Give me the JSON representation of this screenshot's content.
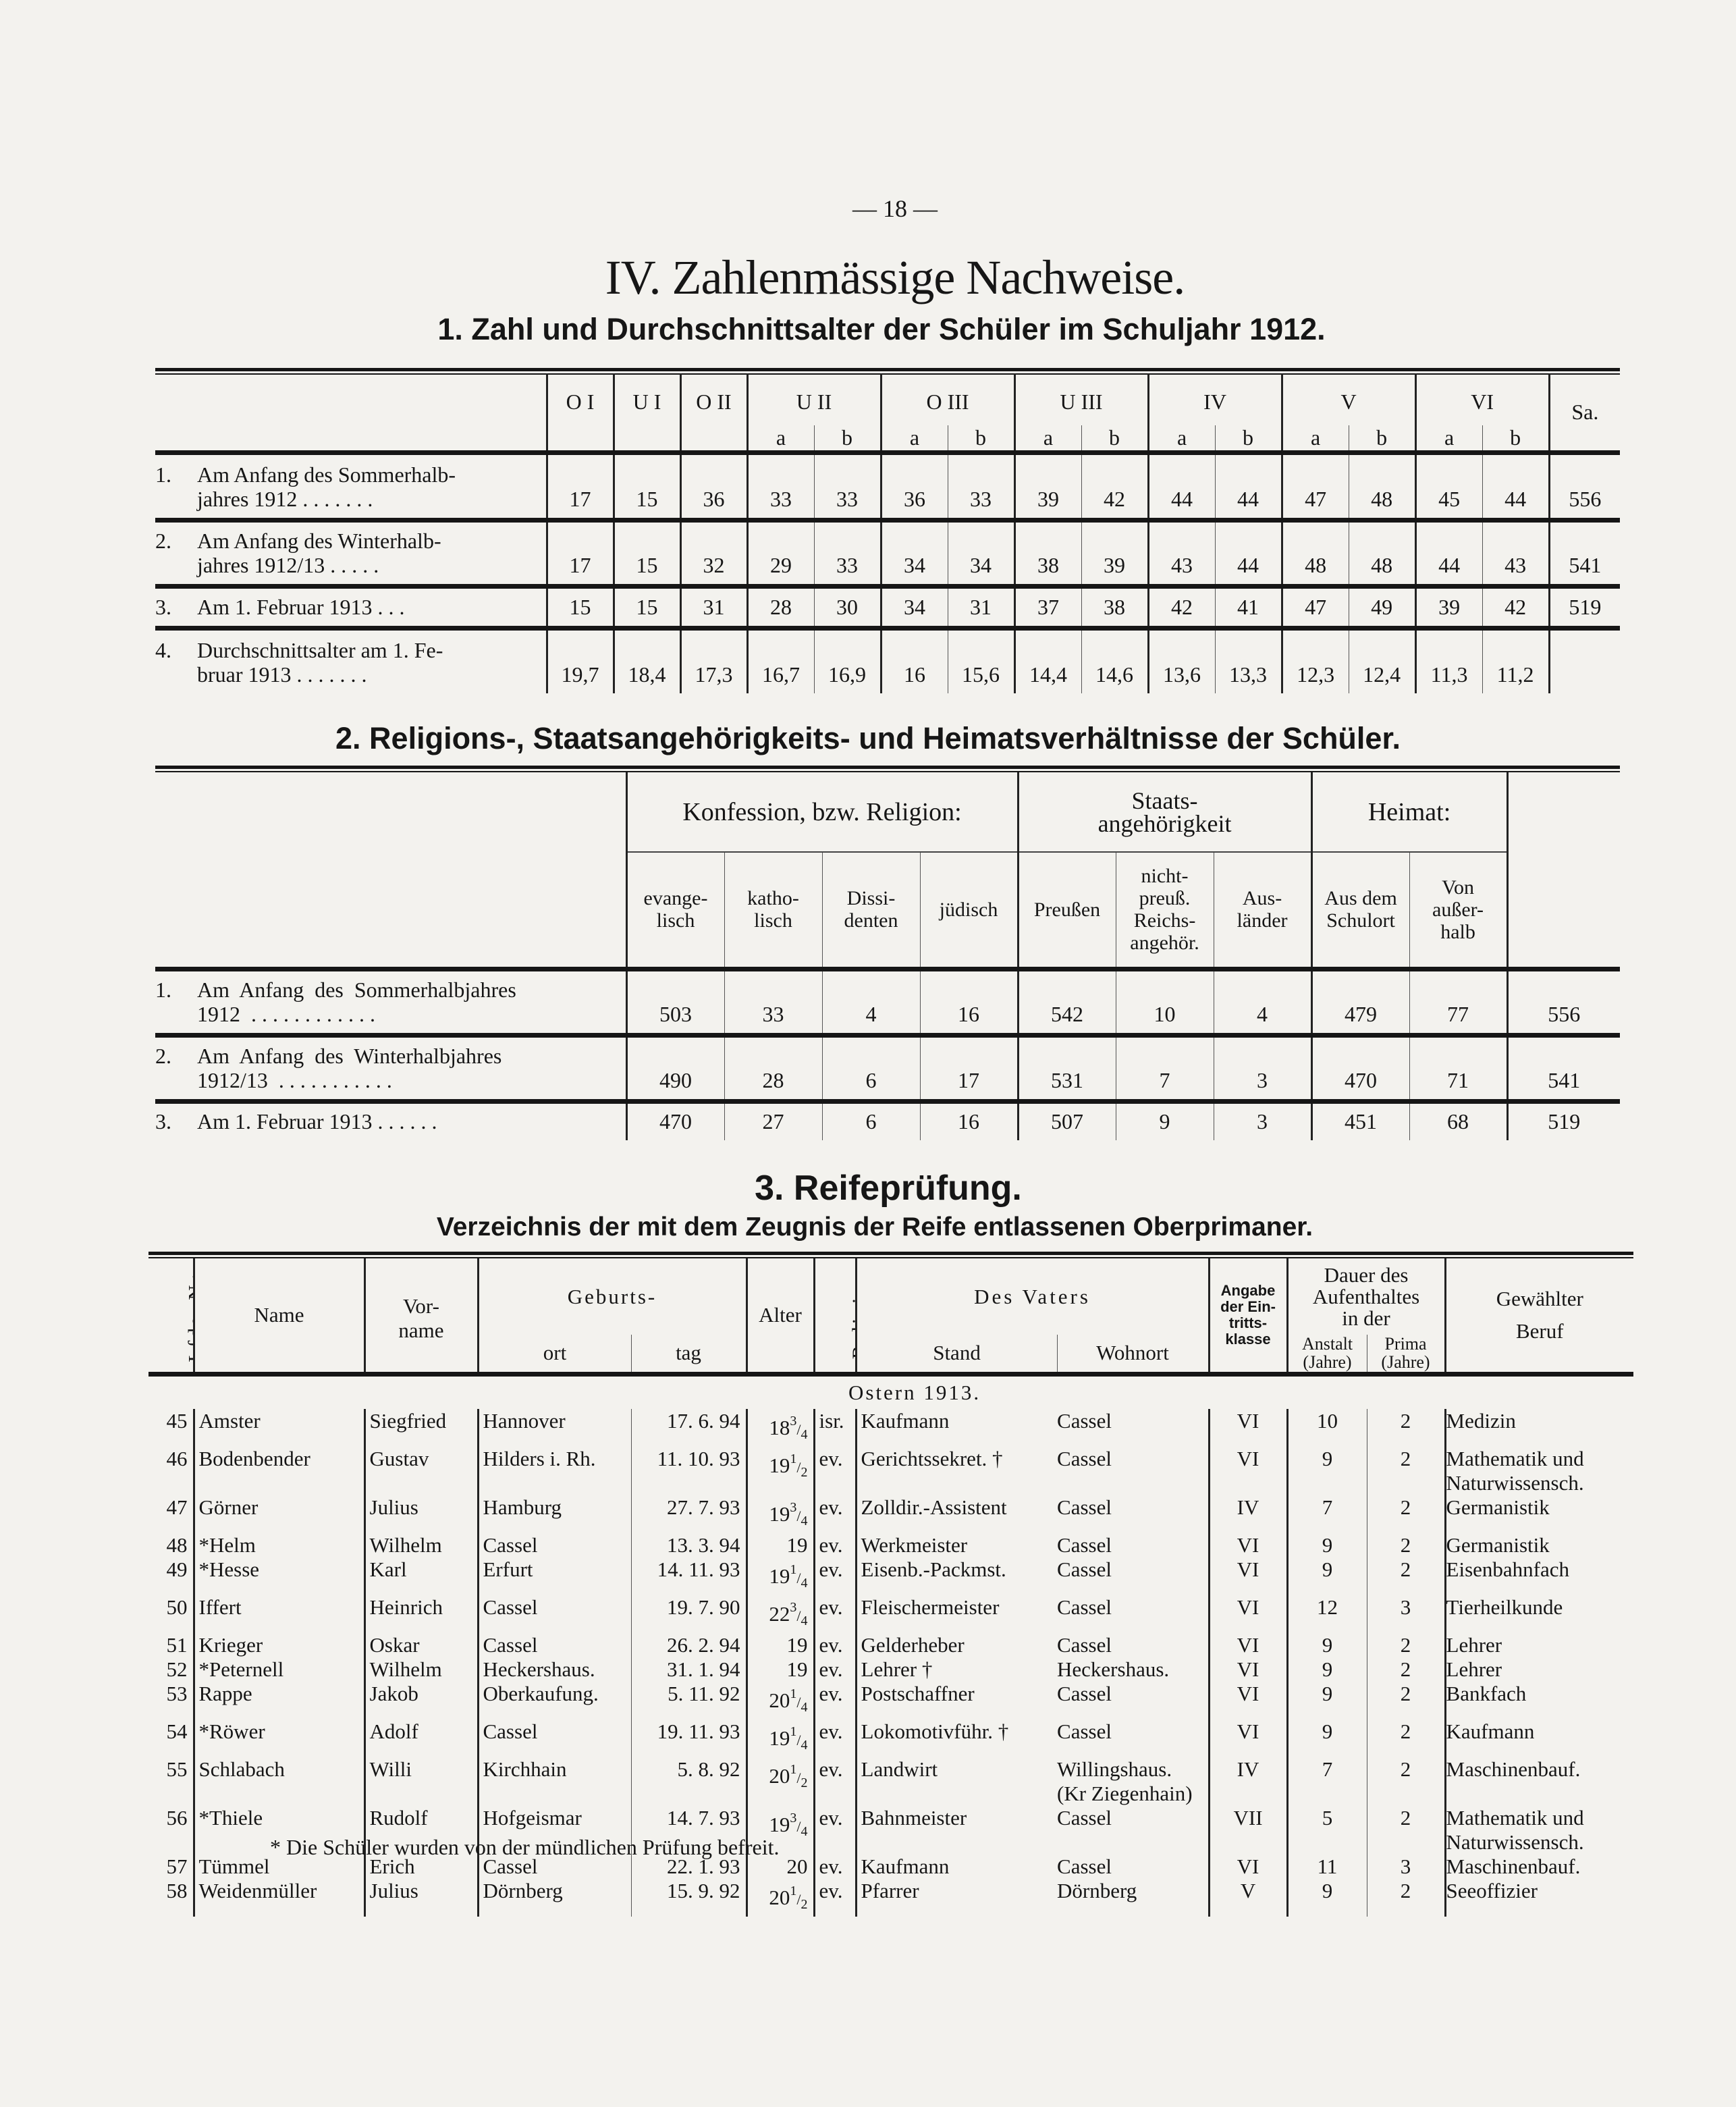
{
  "page_number": "— 18 —",
  "title": "IV. Zahlenmässige Nachweise.",
  "section1": {
    "heading": "1. Zahl und Durchschnittsalter der Schüler im Schuljahr 1912.",
    "single_columns": [
      "O I",
      "U I",
      "O II"
    ],
    "split_columns": [
      "U II",
      "O III",
      "U III",
      "IV",
      "V",
      "VI"
    ],
    "sub_a": "a",
    "sub_b": "b",
    "total_header": "Sa.",
    "rows": [
      {
        "no": "1.",
        "label": [
          "Am Anfang des Sommerhalb-",
          "jahres 1912 . . . . . . ."
        ],
        "values": [
          "17",
          "15",
          "36",
          "33",
          "33",
          "36",
          "33",
          "39",
          "42",
          "44",
          "44",
          "47",
          "48",
          "45",
          "44",
          "556"
        ]
      },
      {
        "no": "2.",
        "label": [
          "Am Anfang des Winterhalb-",
          "jahres 1912/13 . . . . ."
        ],
        "values": [
          "17",
          "15",
          "32",
          "29",
          "33",
          "34",
          "34",
          "38",
          "39",
          "43",
          "44",
          "48",
          "48",
          "44",
          "43",
          "541"
        ]
      },
      {
        "no": "3.",
        "label": [
          "Am 1. Februar 1913 . . ."
        ],
        "values": [
          "15",
          "15",
          "31",
          "28",
          "30",
          "34",
          "31",
          "37",
          "38",
          "42",
          "41",
          "47",
          "49",
          "39",
          "42",
          "519"
        ]
      },
      {
        "no": "4.",
        "label": [
          "Durchschnittsalter am 1. Fe-",
          "bruar 1913 . . . . . . ."
        ],
        "values": [
          "19,7",
          "18,4",
          "17,3",
          "16,7",
          "16,9",
          "16",
          "15,6",
          "14,4",
          "14,6",
          "13,6",
          "13,3",
          "12,3",
          "12,4",
          "11,3",
          "11,2",
          ""
        ]
      }
    ]
  },
  "section2": {
    "heading": "2. Religions-, Staatsangehörigkeits- und Heimatsverhältnisse der Schüler.",
    "groups": [
      {
        "label": "Konfession, bzw. Religion:",
        "span": 4
      },
      {
        "label": "Staats-\nangehörigkeit",
        "span": 3
      },
      {
        "label": "Heimat:",
        "span": 2
      }
    ],
    "columns": [
      "evange-\nlisch",
      "katho-\nlisch",
      "Dissi-\ndenten",
      "jüdisch",
      "Preußen",
      "nicht-\npreuß.\nReichs-\nangehör.",
      "Aus-\nländer",
      "Aus dem\nSchulort",
      "Von\naußer-\nhalb"
    ],
    "rows": [
      {
        "no": "1.",
        "label": [
          "Am  Anfang  des  Sommerhalbjahres",
          "1912  . . . . . . . . . . . ."
        ],
        "values": [
          "503",
          "33",
          "4",
          "16",
          "542",
          "10",
          "4",
          "479",
          "77",
          "556"
        ]
      },
      {
        "no": "2.",
        "label": [
          "Am  Anfang  des  Winterhalbjahres",
          "1912/13  . . . . . . . . . . ."
        ],
        "values": [
          "490",
          "28",
          "6",
          "17",
          "531",
          "7",
          "3",
          "470",
          "71",
          "541"
        ]
      },
      {
        "no": "3.",
        "label": [
          "Am 1. Februar 1913 . . . . . ."
        ],
        "values": [
          "470",
          "27",
          "6",
          "16",
          "507",
          "9",
          "3",
          "451",
          "68",
          "519"
        ]
      }
    ]
  },
  "section3": {
    "heading": "3. Reifeprüfung.",
    "subheading": "Verzeichnis der mit dem Zeugnis der Reife entlassenen Oberprimaner.",
    "headers": {
      "lfde": "Lfde. Nr.",
      "name": "Name",
      "vorname": "Vor-\nname",
      "geburts": "Geburts-",
      "ort": "ort",
      "tag": "tag",
      "alter": "Alter",
      "religion": "Religion",
      "vaters": "Des Vaters",
      "stand": "Stand",
      "wohnort": "Wohnort",
      "angabe": "Angabe\nder Ein-\ntritts-\nklasse",
      "dauer": "Dauer des\nAufenthaltes\nin der",
      "anstalt": "Anstalt\n(Jahre)",
      "prima": "Prima\n(Jahre)",
      "beruf": "Gewählter\nBeruf"
    },
    "period": "Ostern 1913.",
    "rows": [
      {
        "nr": "45",
        "name": "Amster",
        "vorname": "Siegfried",
        "ort": "Hannover",
        "tag": "17. 6. 94",
        "alter": [
          "18",
          "3",
          "4"
        ],
        "religion": "isr.",
        "stand": "Kaufmann",
        "wohnort": "Cassel",
        "klasse": "VI",
        "anstalt": "10",
        "prima": "2",
        "beruf": "Medizin"
      },
      {
        "nr": "46",
        "name": "Bodenbender",
        "vorname": "Gustav",
        "ort": "Hilders i. Rh.",
        "tag": "11. 10. 93",
        "alter": [
          "19",
          "1",
          "2"
        ],
        "religion": "ev.",
        "stand": "Gerichtssekret. †",
        "wohnort": "Cassel",
        "klasse": "VI",
        "anstalt": "9",
        "prima": "2",
        "beruf": "Mathematik und\nNaturwissensch."
      },
      {
        "nr": "47",
        "name": "Görner",
        "vorname": "Julius",
        "ort": "Hamburg",
        "tag": "27. 7. 93",
        "alter": [
          "19",
          "3",
          "4"
        ],
        "religion": "ev.",
        "stand": "Zolldir.-Assistent",
        "wohnort": "Cassel",
        "klasse": "IV",
        "anstalt": "7",
        "prima": "2",
        "beruf": "Germanistik"
      },
      {
        "nr": "48",
        "name": "*Helm",
        "vorname": "Wilhelm",
        "ort": "Cassel",
        "tag": "13. 3. 94",
        "alter": [
          "19"
        ],
        "religion": "ev.",
        "stand": "Werkmeister",
        "wohnort": "Cassel",
        "klasse": "VI",
        "anstalt": "9",
        "prima": "2",
        "beruf": "Germanistik"
      },
      {
        "nr": "49",
        "name": "*Hesse",
        "vorname": "Karl",
        "ort": "Erfurt",
        "tag": "14. 11. 93",
        "alter": [
          "19",
          "1",
          "4"
        ],
        "religion": "ev.",
        "stand": "Eisenb.-Packmst.",
        "wohnort": "Cassel",
        "klasse": "VI",
        "anstalt": "9",
        "prima": "2",
        "beruf": "Eisenbahnfach"
      },
      {
        "nr": "50",
        "name": "Iffert",
        "vorname": "Heinrich",
        "ort": "Cassel",
        "tag": "19. 7. 90",
        "alter": [
          "22",
          "3",
          "4"
        ],
        "religion": "ev.",
        "stand": "Fleischermeister",
        "wohnort": "Cassel",
        "klasse": "VI",
        "anstalt": "12",
        "prima": "3",
        "beruf": "Tierheilkunde"
      },
      {
        "nr": "51",
        "name": "Krieger",
        "vorname": "Oskar",
        "ort": "Cassel",
        "tag": "26. 2. 94",
        "alter": [
          "19"
        ],
        "religion": "ev.",
        "stand": "Gelderheber",
        "wohnort": "Cassel",
        "klasse": "VI",
        "anstalt": "9",
        "prima": "2",
        "beruf": "Lehrer"
      },
      {
        "nr": "52",
        "name": "*Peternell",
        "vorname": "Wilhelm",
        "ort": "Heckershaus.",
        "tag": "31. 1. 94",
        "alter": [
          "19"
        ],
        "religion": "ev.",
        "stand": "Lehrer †",
        "wohnort": "Heckershaus.",
        "klasse": "VI",
        "anstalt": "9",
        "prima": "2",
        "beruf": "Lehrer"
      },
      {
        "nr": "53",
        "name": "Rappe",
        "vorname": "Jakob",
        "ort": "Oberkaufung.",
        "tag": "5. 11. 92",
        "alter": [
          "20",
          "1",
          "4"
        ],
        "religion": "ev.",
        "stand": "Postschaffner",
        "wohnort": "Cassel",
        "klasse": "VI",
        "anstalt": "9",
        "prima": "2",
        "beruf": "Bankfach"
      },
      {
        "nr": "54",
        "name": "*Röwer",
        "vorname": "Adolf",
        "ort": "Cassel",
        "tag": "19. 11. 93",
        "alter": [
          "19",
          "1",
          "4"
        ],
        "religion": "ev.",
        "stand": "Lokomotivführ. †",
        "wohnort": "Cassel",
        "klasse": "VI",
        "anstalt": "9",
        "prima": "2",
        "beruf": "Kaufmann"
      },
      {
        "nr": "55",
        "name": "Schlabach",
        "vorname": "Willi",
        "ort": "Kirchhain",
        "tag": "5. 8. 92",
        "alter": [
          "20",
          "1",
          "2"
        ],
        "religion": "ev.",
        "stand": "Landwirt",
        "wohnort": "Willingshaus.\n(Kr Ziegenhain)",
        "klasse": "IV",
        "anstalt": "7",
        "prima": "2",
        "beruf": "Maschinenbauf."
      },
      {
        "nr": "56",
        "name": "*Thiele",
        "vorname": "Rudolf",
        "ort": "Hofgeismar",
        "tag": "14. 7. 93",
        "alter": [
          "19",
          "3",
          "4"
        ],
        "religion": "ev.",
        "stand": "Bahnmeister",
        "wohnort": "Cassel",
        "klasse": "VII",
        "anstalt": "5",
        "prima": "2",
        "beruf": "Mathematik und\nNaturwissensch."
      },
      {
        "nr": "57",
        "name": "Tümmel",
        "vorname": "Erich",
        "ort": "Cassel",
        "tag": "22. 1. 93",
        "alter": [
          "20"
        ],
        "religion": "ev.",
        "stand": "Kaufmann",
        "wohnort": "Cassel",
        "klasse": "VI",
        "anstalt": "11",
        "prima": "3",
        "beruf": "Maschinenbauf."
      },
      {
        "nr": "58",
        "name": "Weidenmüller",
        "vorname": "Julius",
        "ort": "Dörnberg",
        "tag": "15. 9. 92",
        "alter": [
          "20",
          "1",
          "2"
        ],
        "religion": "ev.",
        "stand": "Pfarrer",
        "wohnort": "Dörnberg",
        "klasse": "V",
        "anstalt": "9",
        "prima": "2",
        "beruf": "Seeoffizier"
      }
    ],
    "footnote": "* Die Schüler wurden von der mündlichen Prüfung befreit."
  }
}
